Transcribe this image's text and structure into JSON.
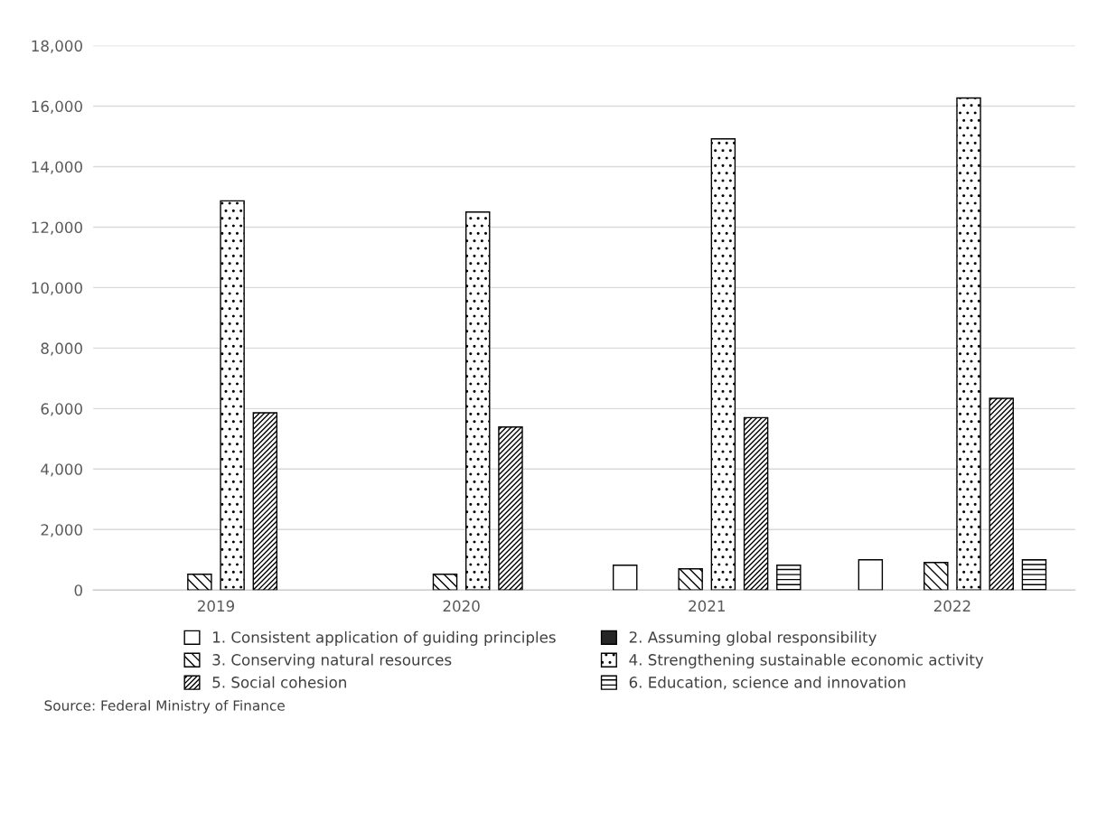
{
  "chart_data": {
    "type": "bar",
    "categories": [
      "2019",
      "2020",
      "2021",
      "2022"
    ],
    "series": [
      {
        "name": "1. Consistent application of guiding principles",
        "color": "#ffffff",
        "values": [
          null,
          null,
          820,
          1000
        ]
      },
      {
        "name": "2. Assuming global responsibility",
        "color": "#262626",
        "values": [
          null,
          null,
          null,
          null
        ]
      },
      {
        "name": "3. Conserving natural resources",
        "color": "#000000",
        "values": [
          520,
          520,
          700,
          910
        ]
      },
      {
        "name": "4. Strengthening sustainable economic activity",
        "color": "#000000",
        "values": [
          12870,
          12500,
          14920,
          16270
        ]
      },
      {
        "name": "5. Social cohesion",
        "color": "#000000",
        "values": [
          5860,
          5390,
          5700,
          6340
        ]
      },
      {
        "name": "6. Education, science and innovation",
        "color": "#000000",
        "values": [
          null,
          null,
          820,
          1000
        ]
      }
    ],
    "ylim": [
      0,
      18000
    ],
    "yticks": [
      {
        "value": 0,
        "label": "0"
      },
      {
        "value": 2000,
        "label": "2,000"
      },
      {
        "value": 4000,
        "label": "4,000"
      },
      {
        "value": 6000,
        "label": "6,000"
      },
      {
        "value": 8000,
        "label": "8,000"
      },
      {
        "value": 10000,
        "label": "10,000"
      },
      {
        "value": 12000,
        "label": "12,000"
      },
      {
        "value": 14000,
        "label": "14,000"
      },
      {
        "value": 16000,
        "label": "16,000"
      },
      {
        "value": 18000,
        "label": "18,000"
      }
    ],
    "grid": "y",
    "legend": "bottom",
    "annotations": [
      "Source: Federal Ministry of Finance"
    ]
  }
}
